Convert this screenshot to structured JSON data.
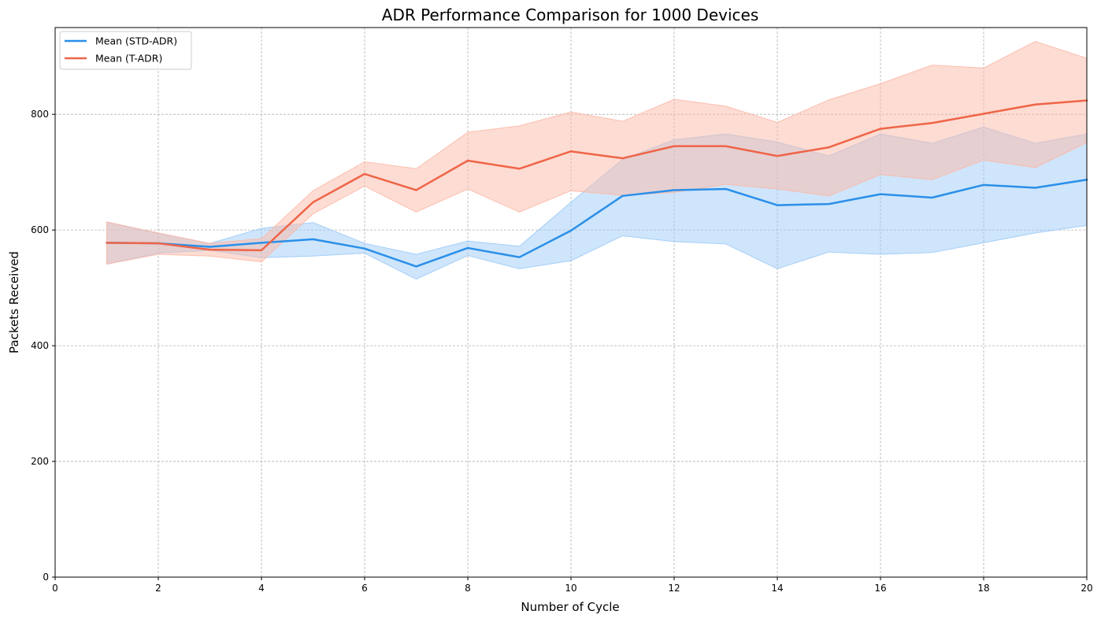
{
  "chart_data": {
    "type": "line",
    "title": "ADR Performance Comparison for 1000 Devices",
    "xlabel": "Number of Cycle",
    "ylabel": "Packets Received",
    "xlim": [
      0,
      20
    ],
    "ylim": [
      0,
      950
    ],
    "xticks": [
      0,
      2,
      4,
      6,
      8,
      10,
      12,
      14,
      16,
      18,
      20
    ],
    "yticks": [
      0,
      200,
      400,
      600,
      800
    ],
    "grid": true,
    "legend_position": "top-left",
    "x": [
      1,
      2,
      3,
      4,
      5,
      6,
      7,
      8,
      9,
      10,
      11,
      12,
      13,
      14,
      15,
      16,
      17,
      18,
      19,
      20
    ],
    "series": [
      {
        "name": "Mean (STD-ADR)",
        "color": "#2a8fe8",
        "band_color": "#9ecbf7",
        "values": [
          578,
          577,
          571,
          578,
          584,
          568,
          537,
          569,
          553,
          599,
          659,
          669,
          671,
          643,
          645,
          662,
          656,
          678,
          673,
          687
        ],
        "lower": [
          541,
          560,
          565,
          552,
          555,
          560,
          515,
          556,
          533,
          547,
          590,
          580,
          576,
          533,
          562,
          558,
          561,
          578,
          595,
          608
        ],
        "upper": [
          614,
          594,
          577,
          603,
          613,
          577,
          558,
          581,
          572,
          648,
          722,
          756,
          766,
          752,
          728,
          766,
          750,
          778,
          750,
          766
        ]
      },
      {
        "name": "Mean (T-ADR)",
        "color": "#ef6548",
        "band_color": "#fcb9a8",
        "values": [
          578,
          577,
          566,
          565,
          648,
          697,
          669,
          720,
          706,
          736,
          724,
          745,
          745,
          728,
          743,
          775,
          785,
          801,
          817,
          824
        ],
        "lower": [
          541,
          558,
          555,
          545,
          628,
          676,
          631,
          671,
          631,
          668,
          660,
          665,
          679,
          671,
          659,
          696,
          687,
          721,
          708,
          751
        ],
        "upper": [
          614,
          595,
          577,
          585,
          668,
          718,
          706,
          769,
          780,
          804,
          788,
          826,
          814,
          786,
          825,
          853,
          885,
          880,
          926,
          897
        ]
      }
    ]
  }
}
